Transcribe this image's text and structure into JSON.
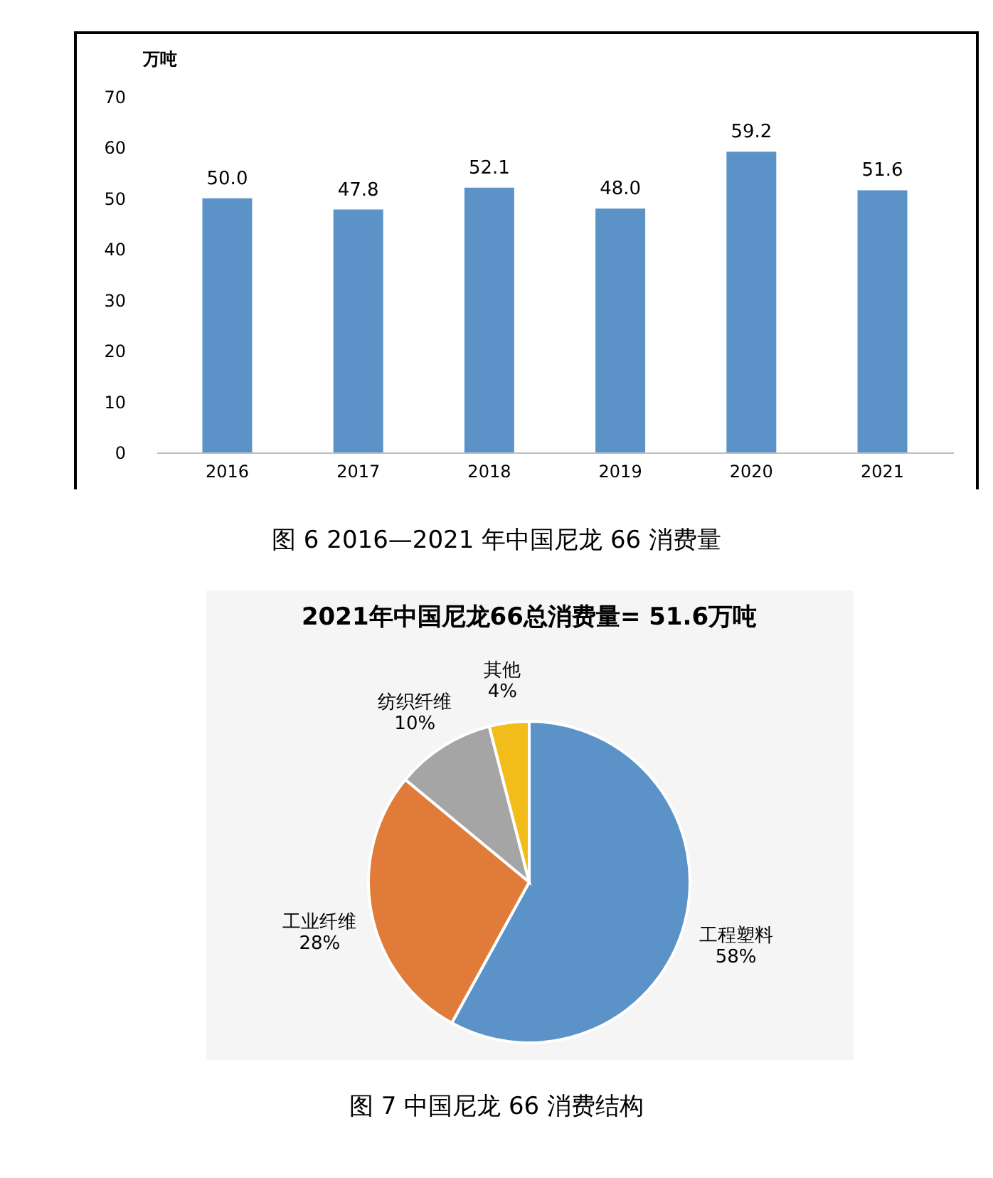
{
  "chart_data": [
    {
      "type": "bar",
      "title": "图 6  2016—2021 年中国尼龙 66 消费量",
      "ylabel": "万吨",
      "categories": [
        "2016",
        "2017",
        "2018",
        "2019",
        "2020",
        "2021"
      ],
      "values": [
        50.0,
        47.8,
        52.1,
        48.0,
        59.2,
        51.6
      ],
      "value_labels": [
        "50.0",
        "47.8",
        "52.1",
        "48.0",
        "59.2",
        "51.6"
      ],
      "color": "#5b93c8",
      "ylim": [
        0,
        70
      ],
      "yticks": [
        0,
        10,
        20,
        30,
        40,
        50,
        60,
        70
      ]
    },
    {
      "type": "pie",
      "title": "2021年中国尼龙66总消费量= 51.6万吨",
      "annotations": [
        "图 7  中国尼龙 66 消费结构"
      ],
      "categories": [
        "工程塑料",
        "工业纤维",
        "纺织纤维",
        "其他"
      ],
      "values": [
        58,
        28,
        10,
        4
      ],
      "value_labels": [
        "58%",
        "28%",
        "10%",
        "4%"
      ],
      "colors": [
        "#5b93c8",
        "#e07b39",
        "#a5a5a5",
        "#f2bc1b"
      ],
      "legend": false
    }
  ]
}
